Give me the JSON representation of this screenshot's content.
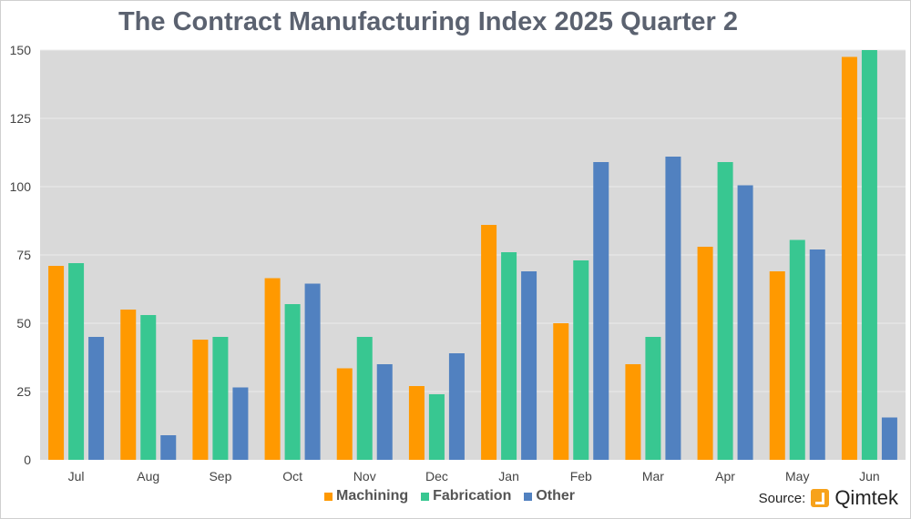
{
  "chart_data": {
    "type": "bar",
    "title": "The Contract Manufacturing Index 2025 Quarter 2",
    "categories": [
      "Jul",
      "Aug",
      "Sep",
      "Oct",
      "Nov",
      "Dec",
      "Jan",
      "Feb",
      "Mar",
      "Apr",
      "May",
      "Jun"
    ],
    "series": [
      {
        "name": "Machining",
        "color": "#ff9900",
        "values": [
          71,
          55,
          44,
          66.5,
          33.5,
          27,
          86,
          50,
          35,
          78,
          69,
          147.5
        ]
      },
      {
        "name": "Fabrication",
        "color": "#38c791",
        "values": [
          72,
          53,
          45,
          57,
          45,
          24,
          76,
          73,
          45,
          109,
          80.5,
          150
        ]
      },
      {
        "name": "Other",
        "color": "#5181c0",
        "values": [
          45,
          9,
          26.5,
          64.5,
          35,
          39,
          69,
          109,
          111,
          100.5,
          77,
          15.5
        ]
      }
    ],
    "ylim": [
      0,
      150
    ],
    "yticks": [
      0,
      25,
      50,
      75,
      100,
      125,
      150
    ],
    "grid": true,
    "legend_position": "bottom",
    "plot_background": "#d9d9d9"
  },
  "source": {
    "label": "Source:",
    "brand": "Qimtek"
  }
}
